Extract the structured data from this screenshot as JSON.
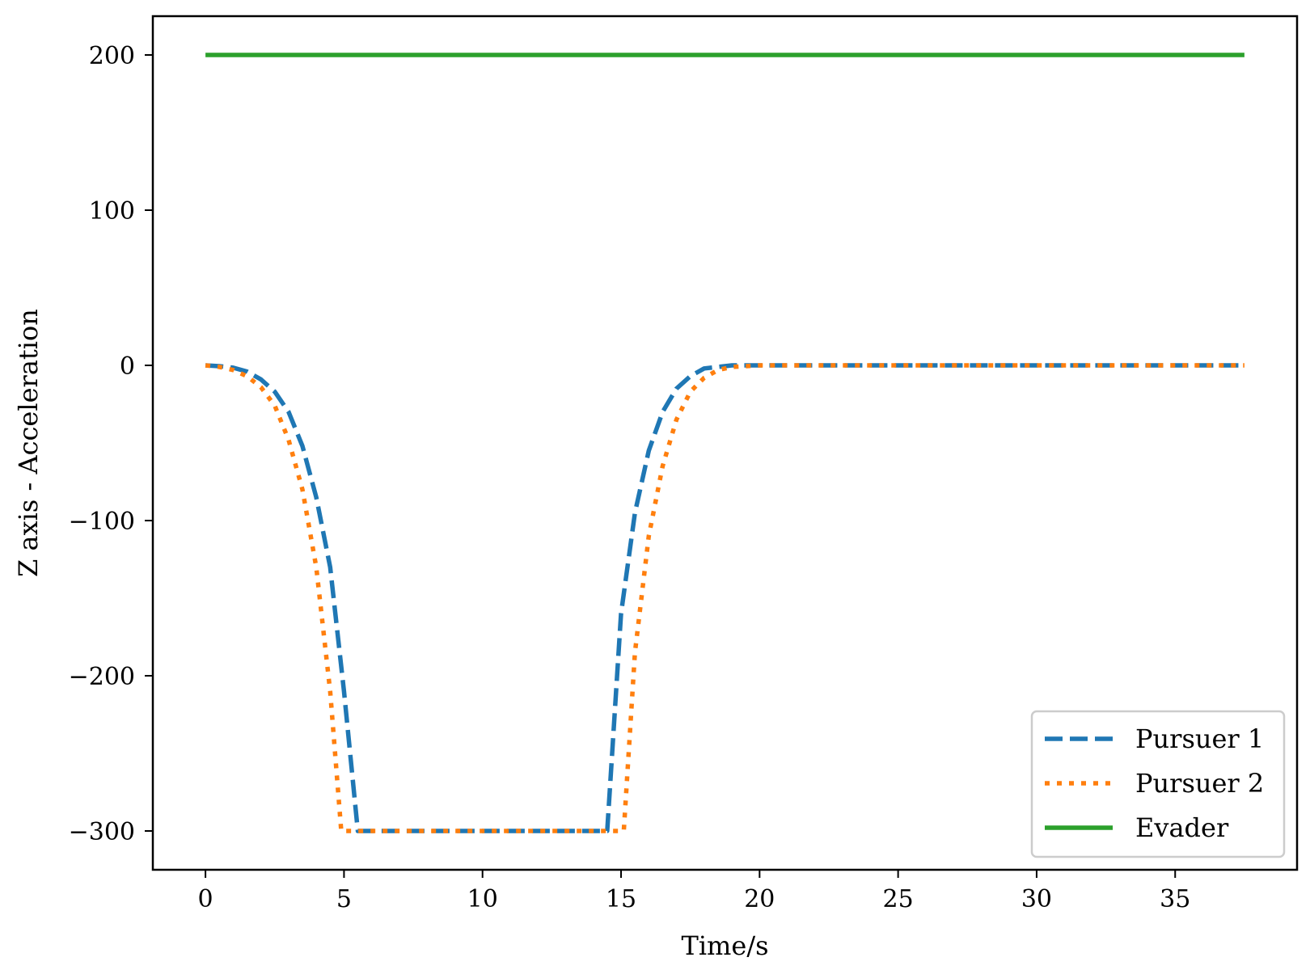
{
  "chart_data": {
    "type": "line",
    "title": "",
    "xlabel": "Time/s",
    "ylabel": "Z axis - Acceleration",
    "xlim": [
      -1.9,
      39.4
    ],
    "ylim": [
      -325,
      225
    ],
    "xticks": [
      0,
      5,
      10,
      15,
      20,
      25,
      30,
      35
    ],
    "xtick_labels": [
      "0",
      "5",
      "10",
      "15",
      "20",
      "25",
      "30",
      "35"
    ],
    "yticks": [
      -300,
      -200,
      -100,
      0,
      100,
      200
    ],
    "ytick_labels": [
      "−300",
      "−200",
      "−100",
      "0",
      "100",
      "200"
    ],
    "grid": false,
    "legend_position": "lower right",
    "series": [
      {
        "name": "Pursuer 1",
        "color": "#1f77b4",
        "style": "dashed",
        "x": [
          0,
          0.5,
          1,
          1.5,
          2,
          2.5,
          3,
          3.5,
          4,
          4.5,
          5,
          5.5,
          6,
          8,
          10,
          12,
          14,
          14.5,
          15,
          15.5,
          16,
          16.5,
          17,
          17.5,
          18,
          19,
          20,
          25,
          30,
          35,
          37.5
        ],
        "y": [
          0,
          -0.5,
          -1.5,
          -4,
          -9,
          -17,
          -30,
          -52,
          -85,
          -130,
          -210,
          -300,
          -300,
          -300,
          -300,
          -300,
          -300,
          -300,
          -160,
          -95,
          -55,
          -30,
          -15,
          -7,
          -2,
          0,
          0,
          0,
          0,
          0,
          0
        ]
      },
      {
        "name": "Pursuer 2",
        "color": "#ff7f0e",
        "style": "dotted",
        "x": [
          0,
          0.5,
          1,
          1.5,
          2,
          2.5,
          3,
          3.5,
          4,
          4.5,
          4.9,
          5.5,
          8,
          10,
          12,
          14,
          15,
          15.1,
          15.5,
          16,
          16.5,
          17,
          17.5,
          18,
          18.5,
          19,
          20,
          25,
          30,
          35,
          37.5
        ],
        "y": [
          0,
          -1,
          -3,
          -7,
          -14,
          -26,
          -48,
          -80,
          -130,
          -210,
          -300,
          -300,
          -300,
          -300,
          -300,
          -300,
          -300,
          -300,
          -185,
          -110,
          -65,
          -35,
          -17,
          -8,
          -3,
          -1,
          0,
          0,
          0,
          0,
          0
        ]
      },
      {
        "name": "Evader",
        "color": "#2ca02c",
        "style": "solid",
        "x": [
          0,
          37.5
        ],
        "y": [
          200,
          200
        ]
      }
    ]
  }
}
